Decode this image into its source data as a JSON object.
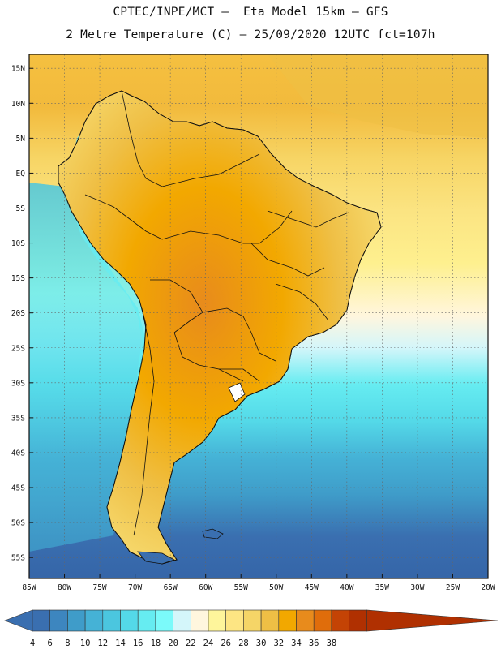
{
  "header": {
    "line1": "CPTEC/INPE/MCT –  Eta Model 15km – GFS",
    "line2": "2 Metre Temperature (C) – 25/09/2020 12UTC fct=107h"
  },
  "map": {
    "lon_range": [
      -85,
      -20
    ],
    "lat_range": [
      -58,
      17
    ],
    "lat_ticks": [
      "15N",
      "10N",
      "5N",
      "EQ",
      "5S",
      "10S",
      "15S",
      "20S",
      "25S",
      "30S",
      "35S",
      "40S",
      "45S",
      "50S",
      "55S"
    ],
    "lon_ticks": [
      "85W",
      "80W",
      "75W",
      "70W",
      "65W",
      "60W",
      "55W",
      "50W",
      "45W",
      "40W",
      "35W",
      "30W",
      "25W",
      "20W"
    ]
  },
  "colorbar": {
    "labels": [
      "4",
      "6",
      "8",
      "10",
      "12",
      "14",
      "16",
      "18",
      "20",
      "22",
      "24",
      "26",
      "28",
      "30",
      "32",
      "34",
      "36",
      "38"
    ],
    "colors": [
      "#3a6fb0",
      "#3d86bf",
      "#3f9cc9",
      "#45b2d6",
      "#4bc6df",
      "#54d9e8",
      "#66ecf1",
      "#7bfafa",
      "#d4f6fa",
      "#fff6de",
      "#fef59b",
      "#fde583",
      "#f5d567",
      "#efbf45",
      "#f2a800",
      "#e88b1c",
      "#e06d0b",
      "#c44305",
      "#b03001"
    ],
    "low_arrow_color": "#3a6fb0",
    "high_arrow_color": "#b03001"
  }
}
